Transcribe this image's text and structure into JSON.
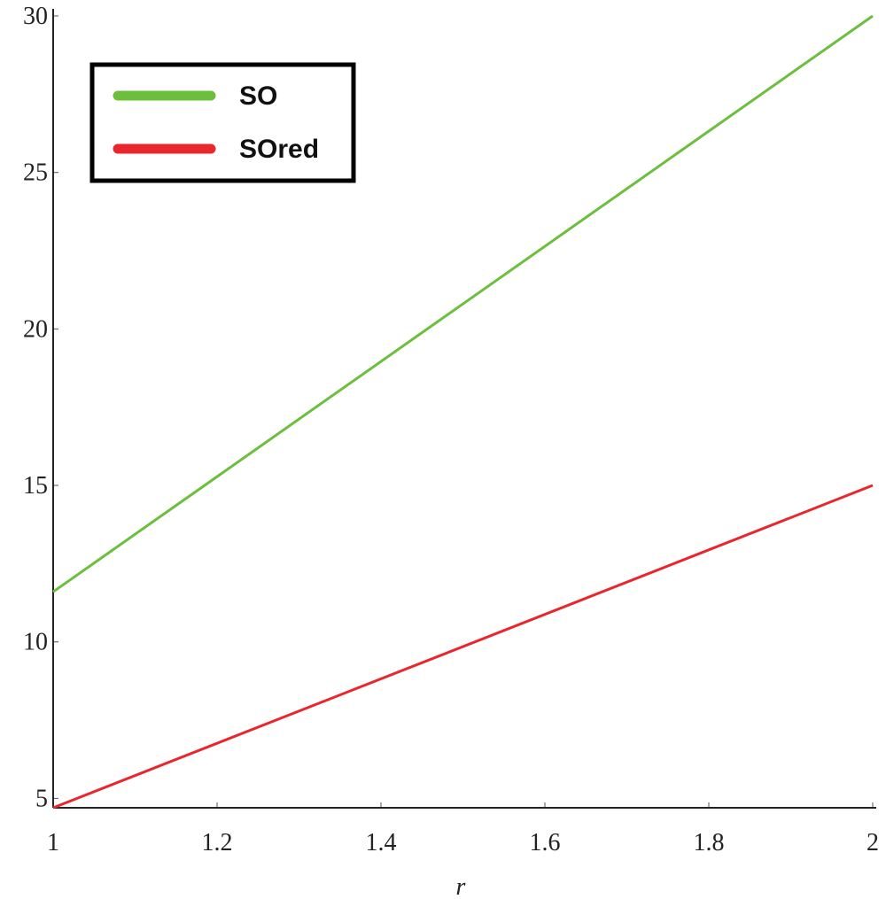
{
  "chart_data": {
    "type": "line",
    "xlabel": "r",
    "x": [
      1,
      2
    ],
    "series": [
      {
        "name": "SO",
        "color": "#6cbf3c",
        "values": [
          11.6,
          30
        ]
      },
      {
        "name": "SOred",
        "color": "#e8262c",
        "values": [
          4.7,
          15
        ]
      }
    ],
    "xlim": [
      1,
      2
    ],
    "xticks": [
      1,
      1.2,
      1.4,
      1.6,
      1.8,
      2
    ],
    "ylim": [
      4.7,
      30
    ],
    "yticks": [
      5,
      10,
      15,
      20,
      25,
      30
    ],
    "grid": false,
    "legend": "upper left"
  }
}
